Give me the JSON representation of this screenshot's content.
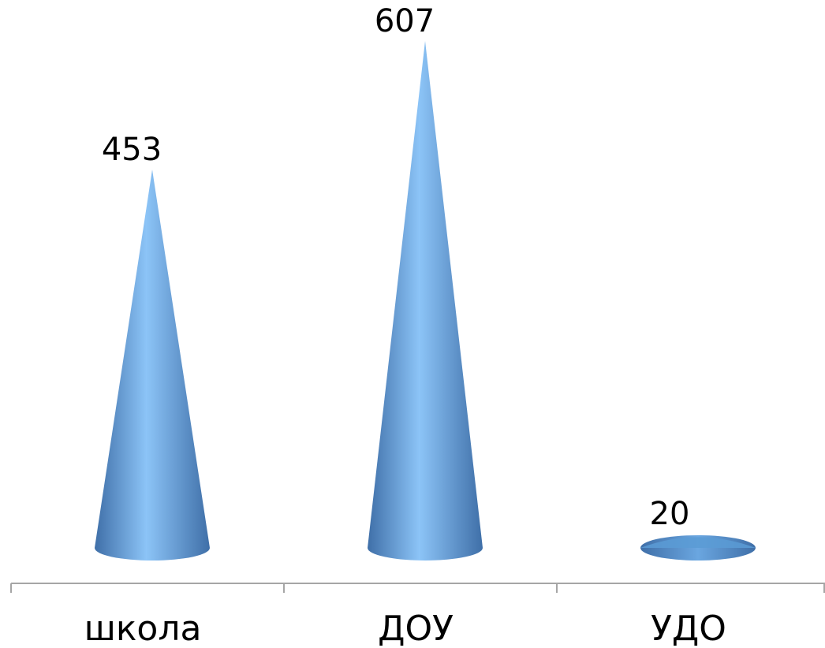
{
  "chart_data": {
    "type": "bar",
    "bar_shape": "cone",
    "categories": [
      "школа",
      "ДОУ",
      "УДО"
    ],
    "values": [
      453,
      607,
      20
    ],
    "data_labels": [
      "453",
      "607",
      "20"
    ],
    "ylim": [
      0,
      607
    ],
    "grid": false,
    "legend": "none",
    "colors": {
      "cone_dark": "#3f6fa8",
      "cone_mid": "#5b9bd5",
      "cone_light": "#8cc4f7",
      "axis": "#a6a6a6"
    }
  }
}
